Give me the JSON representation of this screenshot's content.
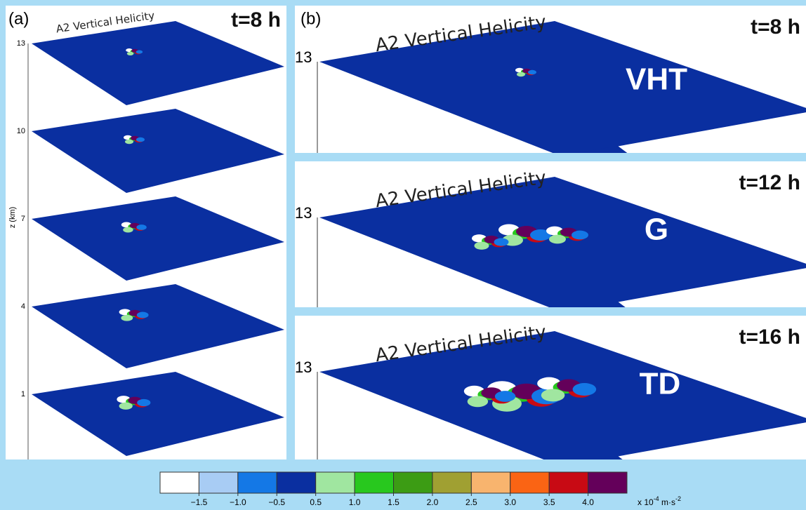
{
  "panel_a": {
    "label": "(a)",
    "title": "A2 Vertical Helicity",
    "time": "t=8 h",
    "axis_label": "z (km)",
    "levels": [
      13,
      10,
      7,
      4,
      1
    ]
  },
  "panel_b": {
    "label": "(b)",
    "rows": [
      {
        "title": "A2 Vertical Helicity",
        "time": "t=8 h",
        "stage": "VHT",
        "level": 13
      },
      {
        "title": "A2 Vertical Helicity",
        "time": "t=12 h",
        "stage": "G",
        "level": 13
      },
      {
        "title": "A2 Vertical Helicity",
        "time": "t=16 h",
        "stage": "TD",
        "level": 13
      }
    ]
  },
  "colorbar": {
    "colors": [
      "#ffffff",
      "#a8ccf4",
      "#1478e6",
      "#0a2fa0",
      "#a0e6a0",
      "#28c81e",
      "#3c9c14",
      "#a0a032",
      "#f8b46e",
      "#fa6414",
      "#c80a14",
      "#64005a"
    ],
    "ticks": [
      {
        "value": -1.5,
        "label": "−1.5"
      },
      {
        "value": -1.0,
        "label": "−1.0"
      },
      {
        "value": -0.5,
        "label": "−0.5"
      },
      0.5,
      {
        "value": 1.0,
        "label": "1.0"
      },
      1.5,
      {
        "value": 2.0,
        "label": "2.0"
      },
      2.5,
      {
        "value": 3.0,
        "label": "3.0"
      },
      3.5,
      {
        "value": 4.0,
        "label": "4.0"
      }
    ],
    "unit": {
      "base": "x 10",
      "exp1": "-4",
      "mid": " m·s",
      "exp2": "-2"
    }
  }
}
